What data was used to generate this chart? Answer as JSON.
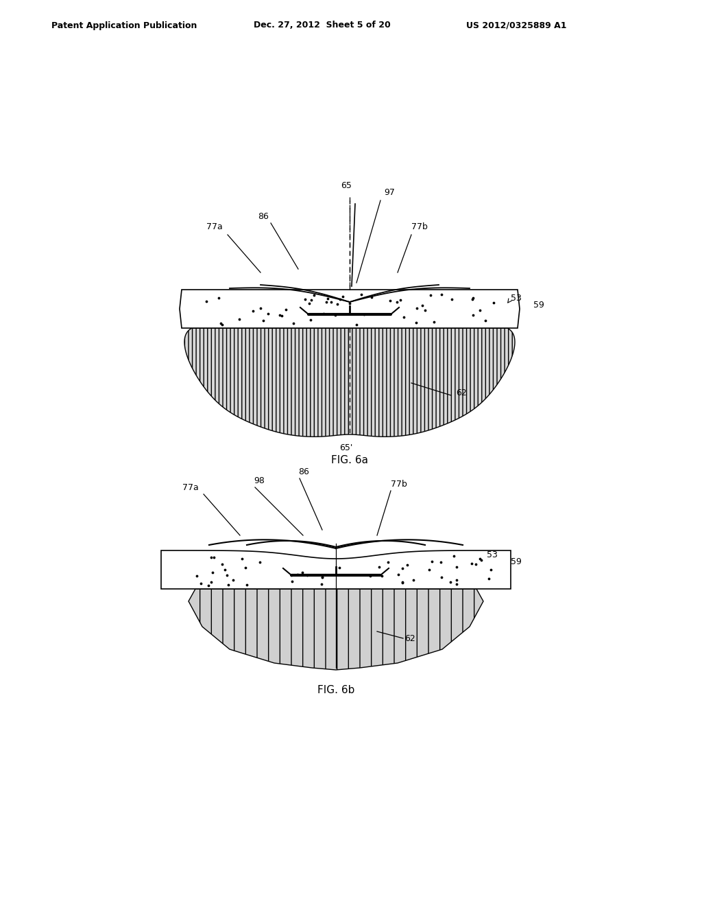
{
  "bg_color": "#ffffff",
  "header_left": "Patent Application Publication",
  "header_mid": "Dec. 27, 2012  Sheet 5 of 20",
  "header_right": "US 2012/0325889 A1",
  "fig_a_caption": "FIG. 6a",
  "fig_b_caption": "FIG. 6b",
  "line_color": "#000000",
  "hatch_color": "#555555",
  "tissue_fill": "#f8f8f8",
  "hanging_fill": "#cccccc",
  "label_fontsize": 9,
  "caption_fontsize": 11
}
